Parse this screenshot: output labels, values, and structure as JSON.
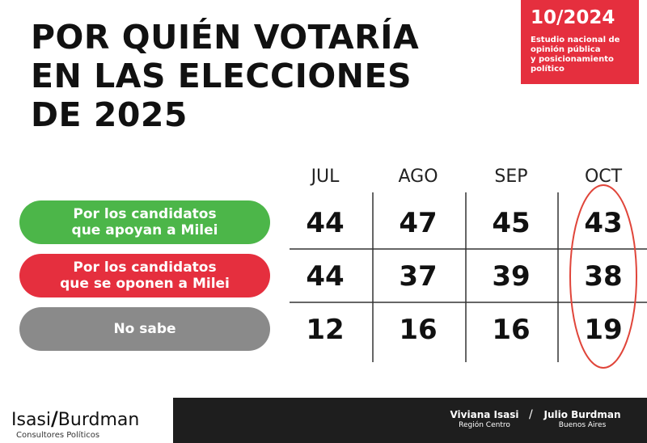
{
  "title_lines": [
    "POR QUIÉN VOTARÍA",
    "EN LAS ELECCIONES",
    "DE 2025"
  ],
  "badge": {
    "date": "10/2024",
    "description_lines": [
      "Estudio nacional de",
      "opinión pública",
      "y posicionamiento",
      "político"
    ]
  },
  "chart_data": {
    "type": "table",
    "title": "POR QUIÉN VOTARÍA EN LAS ELECCIONES DE 2025",
    "columns": [
      "JUL",
      "AGO",
      "SEP",
      "OCT"
    ],
    "rows": [
      {
        "label_lines": [
          "Por los candidatos",
          "que apoyan a Milei"
        ],
        "values": [
          44,
          47,
          45,
          43
        ],
        "color": "#4cb649"
      },
      {
        "label_lines": [
          "Por los candidatos",
          "que se oponen a Milei"
        ],
        "values": [
          44,
          37,
          39,
          38
        ],
        "color": "#e52f3e"
      },
      {
        "label_lines": [
          "No sabe"
        ],
        "values": [
          12,
          16,
          16,
          19
        ],
        "color": "#8a8a8a"
      }
    ],
    "highlighted_column": "OCT",
    "highlight_color": "#e0453a"
  },
  "logo": {
    "left": "Isasi",
    "slash": "/",
    "right": "Burdman",
    "subtitle": "Consultores Políticos"
  },
  "footer": {
    "people": [
      {
        "name": "Viviana Isasi",
        "region": "Región Centro"
      },
      {
        "name": "Julio Burdman",
        "region": "Buenos Aires"
      }
    ],
    "separator": "/"
  }
}
